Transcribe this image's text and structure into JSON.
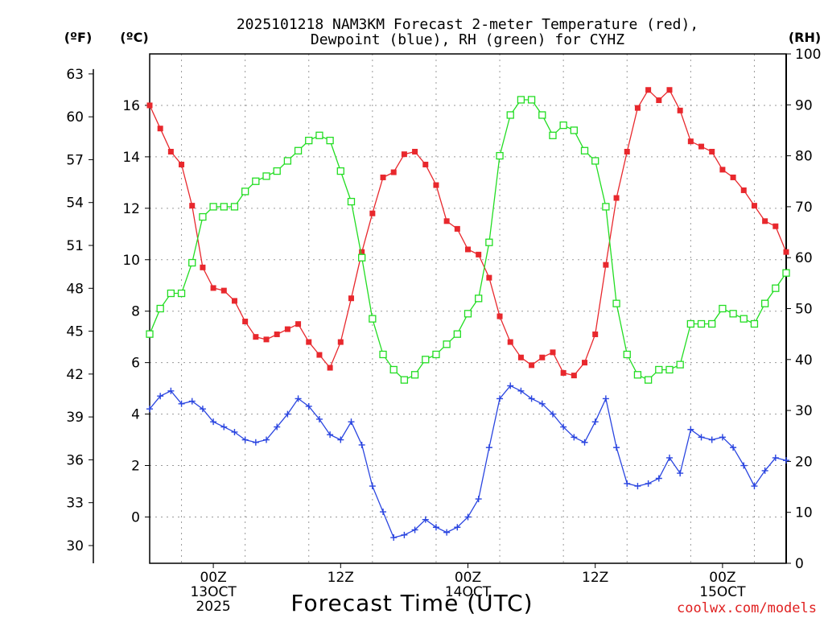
{
  "title": {
    "line1": "2025101218 NAM3KM Forecast 2-meter Temperature (red),",
    "line2": "Dewpoint (blue), RH (green) for CYHZ"
  },
  "units": {
    "fahrenheit": "(ºF)",
    "celsius": "(ºC)",
    "rh": "(RH)"
  },
  "xlabel": "Forecast Time (UTC)",
  "credit": "coolwx.com/models",
  "x_ticks": [
    {
      "hour": 6,
      "lines": [
        "00Z",
        "13OCT",
        "2025"
      ]
    },
    {
      "hour": 18,
      "lines": [
        "12Z"
      ]
    },
    {
      "hour": 30,
      "lines": [
        "00Z",
        "14OCT"
      ]
    },
    {
      "hour": 42,
      "lines": [
        "12Z"
      ]
    },
    {
      "hour": 54,
      "lines": [
        "00Z",
        "15OCT"
      ]
    }
  ],
  "colors": {
    "temperature": "#e8282d",
    "dewpoint": "#2a45e0",
    "rh": "#22dd22",
    "axis": "#000000",
    "grid": "#9a9a9a"
  },
  "chart_data": {
    "type": "line",
    "title": "2025101218 NAM3KM Forecast 2-meter Temperature (red), Dewpoint (blue), RH (green) for CYHZ",
    "xlabel": "Forecast Time (UTC)",
    "x_unit": "forecast hour from 2025-10-12 18Z",
    "xlim": [
      0,
      60
    ],
    "axes": {
      "left_celsius": {
        "label": "(ºC)",
        "ylim": [
          -1.8,
          18.0
        ],
        "ticks": [
          0,
          2,
          4,
          6,
          8,
          10,
          12,
          14,
          16
        ]
      },
      "left_fahrenheit": {
        "label": "(ºF)",
        "ticks": [
          30,
          33,
          36,
          39,
          42,
          45,
          48,
          51,
          54,
          57,
          60,
          63
        ]
      },
      "right_rh": {
        "label": "(RH)",
        "ylim": [
          0,
          100
        ],
        "ticks": [
          0,
          10,
          20,
          30,
          40,
          50,
          60,
          70,
          80,
          90,
          100
        ]
      }
    },
    "grid": true,
    "series": [
      {
        "name": "Temperature",
        "unit": "ºC",
        "axis": "left_celsius",
        "color": "#e8282d",
        "marker": "filled-square",
        "x": [
          0,
          1,
          2,
          3,
          4,
          5,
          6,
          7,
          8,
          9,
          10,
          11,
          12,
          13,
          14,
          15,
          16,
          17,
          18,
          19,
          20,
          21,
          22,
          23,
          24,
          25,
          26,
          27,
          28,
          29,
          30,
          31,
          32,
          33,
          34,
          35,
          36,
          37,
          38,
          39,
          40,
          41,
          42,
          43,
          44,
          45,
          46,
          47,
          48,
          49,
          50,
          51,
          52,
          53,
          54,
          55,
          56,
          57,
          58,
          59,
          60
        ],
        "values": [
          16.0,
          15.1,
          14.2,
          13.7,
          12.1,
          9.7,
          8.9,
          8.8,
          8.4,
          7.6,
          7.0,
          6.9,
          7.1,
          7.3,
          7.5,
          6.8,
          6.3,
          5.8,
          6.8,
          8.5,
          10.3,
          11.8,
          13.2,
          13.4,
          14.1,
          14.2,
          13.7,
          12.9,
          11.5,
          11.2,
          10.4,
          10.2,
          9.3,
          7.8,
          6.8,
          6.2,
          5.9,
          6.2,
          6.4,
          5.6,
          5.5,
          6.0,
          7.1,
          9.8,
          12.4,
          14.2,
          15.9,
          16.6,
          16.2,
          16.6,
          15.8,
          14.6,
          14.4,
          14.2,
          13.5,
          13.2,
          12.7,
          12.1,
          11.5,
          11.3,
          10.3
        ]
      },
      {
        "name": "Dewpoint",
        "unit": "ºC",
        "axis": "left_celsius",
        "color": "#2a45e0",
        "marker": "plus",
        "x": [
          0,
          1,
          2,
          3,
          4,
          5,
          6,
          7,
          8,
          9,
          10,
          11,
          12,
          13,
          14,
          15,
          16,
          17,
          18,
          19,
          20,
          21,
          22,
          23,
          24,
          25,
          26,
          27,
          28,
          29,
          30,
          31,
          32,
          33,
          34,
          35,
          36,
          37,
          38,
          39,
          40,
          41,
          42,
          43,
          44,
          45,
          46,
          47,
          48,
          49,
          50,
          51,
          52,
          53,
          54,
          55,
          56,
          57,
          58,
          59,
          60
        ],
        "values": [
          4.2,
          4.7,
          4.9,
          4.4,
          4.5,
          4.2,
          3.7,
          3.5,
          3.3,
          3.0,
          2.9,
          3.0,
          3.5,
          4.0,
          4.6,
          4.3,
          3.8,
          3.2,
          3.0,
          3.7,
          2.8,
          1.2,
          0.2,
          -0.8,
          -0.7,
          -0.5,
          -0.1,
          -0.4,
          -0.6,
          -0.4,
          0.0,
          0.7,
          2.7,
          4.6,
          5.1,
          4.9,
          4.6,
          4.4,
          4.0,
          3.5,
          3.1,
          2.9,
          3.7,
          4.6,
          2.7,
          1.3,
          1.2,
          1.3,
          1.5,
          2.3,
          1.7,
          3.4,
          3.1,
          3.0,
          3.1,
          2.7,
          2.0,
          1.2,
          1.8,
          2.3,
          2.2
        ]
      },
      {
        "name": "RH",
        "unit": "%",
        "axis": "right_rh",
        "color": "#22dd22",
        "marker": "open-square",
        "x": [
          0,
          1,
          2,
          3,
          4,
          5,
          6,
          7,
          8,
          9,
          10,
          11,
          12,
          13,
          14,
          15,
          16,
          17,
          18,
          19,
          20,
          21,
          22,
          23,
          24,
          25,
          26,
          27,
          28,
          29,
          30,
          31,
          32,
          33,
          34,
          35,
          36,
          37,
          38,
          39,
          40,
          41,
          42,
          43,
          44,
          45,
          46,
          47,
          48,
          49,
          50,
          51,
          52,
          53,
          54,
          55,
          56,
          57,
          58,
          59,
          60
        ],
        "values": [
          45,
          50,
          53,
          53,
          59,
          68,
          70,
          70,
          70,
          73,
          75,
          76,
          77,
          79,
          81,
          83,
          84,
          83,
          77,
          71,
          60,
          48,
          41,
          38,
          36,
          37,
          40,
          41,
          43,
          45,
          49,
          52,
          63,
          80,
          88,
          91,
          91,
          88,
          84,
          86,
          85,
          81,
          79,
          70,
          51,
          41,
          37,
          36,
          38,
          38,
          39,
          47,
          47,
          47,
          50,
          49,
          48,
          47,
          51,
          54,
          57
        ]
      }
    ]
  }
}
